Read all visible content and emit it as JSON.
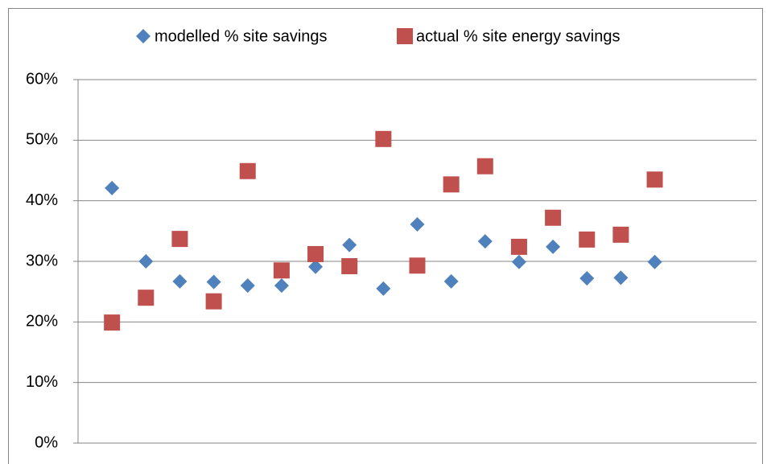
{
  "chart_data": {
    "type": "scatter",
    "x": [
      1,
      2,
      3,
      4,
      5,
      6,
      7,
      8,
      9,
      10,
      11,
      12,
      13,
      14,
      15,
      16,
      17
    ],
    "xlim": [
      0,
      20
    ],
    "ylim": [
      0,
      60
    ],
    "yticks": [
      {
        "value": 0,
        "label": "0%"
      },
      {
        "value": 10,
        "label": "10%"
      },
      {
        "value": 20,
        "label": "20%"
      },
      {
        "value": 30,
        "label": "30%"
      },
      {
        "value": 40,
        "label": "40%"
      },
      {
        "value": 50,
        "label": "50%"
      },
      {
        "value": 60,
        "label": "60%"
      }
    ],
    "grid": true,
    "legend": "top",
    "series": [
      {
        "name": "modelled % site savings",
        "color": "#4f81bd",
        "marker": "diamond",
        "values": [
          42.1,
          30.0,
          26.7,
          26.6,
          26.0,
          26.0,
          29.1,
          32.7,
          25.5,
          36.1,
          26.7,
          33.3,
          29.9,
          32.4,
          27.2,
          27.3,
          29.9
        ]
      },
      {
        "name": "actual % site energy savings",
        "color": "#c0504d",
        "marker": "square",
        "values": [
          19.9,
          24.0,
          33.7,
          23.4,
          44.9,
          28.5,
          31.2,
          29.2,
          50.2,
          29.3,
          42.7,
          45.7,
          32.4,
          37.2,
          33.6,
          34.4,
          43.5
        ]
      }
    ]
  }
}
